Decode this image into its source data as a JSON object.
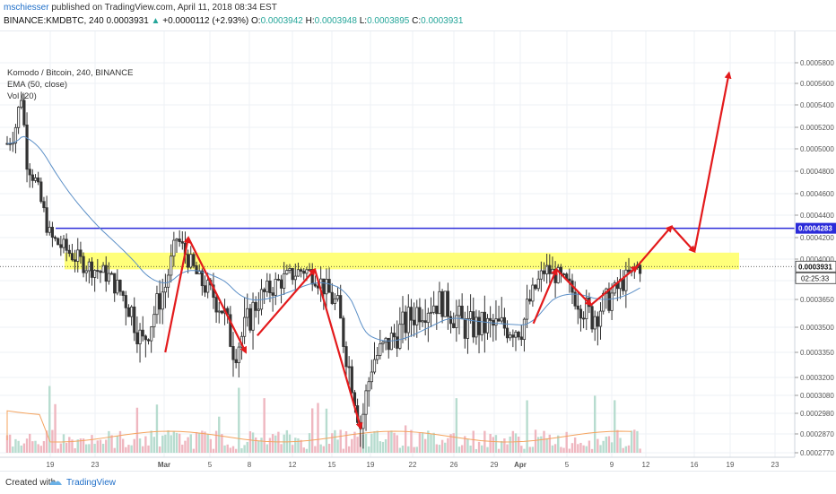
{
  "header": {
    "author": "mschiesser",
    "published_text": "published on TradingView.com, April 11, 2018 08:34 EST",
    "symbol": "BINANCE:KMDBTC, 240",
    "last": "0.0003931",
    "change_arrow": "▲",
    "change": "+0.0000112 (+2.93%)",
    "o_label": "O:",
    "o": "0.0003942",
    "h_label": "H:",
    "h": "0.0003948",
    "l_label": "L:",
    "l": "0.0003895",
    "c_label": "C:",
    "c": "0.0003931"
  },
  "legend": {
    "title": "Komodo / Bitcoin, 240, BINANCE",
    "ema": "EMA (50, close)",
    "vol": "Vol (20)"
  },
  "footer": {
    "created": "Created with",
    "brand": "TradingView"
  },
  "colors": {
    "up": "#26a69a",
    "down": "#333333",
    "ema": "#5b8fc7",
    "resistance": "#2b2bd9",
    "zone": "#ffff7a",
    "arrows": "#e31a1c",
    "vol_up": "#b7dccf",
    "vol_down": "#efb7c0",
    "vol_ma": "#f4a35e"
  },
  "chart_data": {
    "type": "candlestick",
    "y_axis_ticks": [
      "0.0005800",
      "0.0005600",
      "0.0005400",
      "0.0005200",
      "0.0005000",
      "0.0004800",
      "0.0004600",
      "0.0004400",
      "0.0004200",
      "0.0004000",
      "0.0003800",
      "0.0003650",
      "0.0003500",
      "0.0003350",
      "0.0003200",
      "0.0003080",
      "0.0002980",
      "0.0002870",
      "0.0002770"
    ],
    "x_axis_ticks": [
      "19",
      "23",
      "Mar",
      "5",
      "8",
      "12",
      "15",
      "19",
      "22",
      "26",
      "29",
      "Apr",
      "5",
      "9",
      "12",
      "16",
      "19",
      "23"
    ],
    "price_label_resistance": "0.0004283",
    "price_label_last": "0.0003931",
    "countdown": "02:25:33",
    "resistance_level": 0.0004283,
    "zone_range": [
      0.0003905,
      0.000406
    ],
    "last_price": 0.0003931,
    "path_points_approx": [
      [
        "Feb 14",
        0.000545
      ],
      [
        "Feb 16",
        0.00049
      ],
      [
        "Feb 19",
        0.00042
      ],
      [
        "Feb 22",
        0.000395
      ],
      [
        "Feb 24",
        0.000385
      ],
      [
        "Feb 26",
        0.00036
      ],
      [
        "Feb 27",
        0.00034
      ],
      [
        "Mar 1",
        0.000375
      ],
      [
        "Mar 2",
        0.00042
      ],
      [
        "Mar 4",
        0.00038
      ],
      [
        "Mar 6",
        0.00036
      ],
      [
        "Mar 7",
        0.000335
      ],
      [
        "Mar 9",
        0.000365
      ],
      [
        "Mar 11",
        0.00038
      ],
      [
        "Mar 13",
        0.0003905
      ],
      [
        "Mar 14",
        0.000385
      ],
      [
        "Mar 16",
        0.00036
      ],
      [
        "Mar 18",
        0.00029
      ],
      [
        "Mar 19",
        0.00033
      ],
      [
        "Mar 21",
        0.000345
      ],
      [
        "Mar 23",
        0.00036
      ],
      [
        "Mar 25",
        0.000365
      ],
      [
        "Mar 27",
        0.00035
      ],
      [
        "Mar 30",
        0.00035
      ],
      [
        "Apr 1",
        0.00035
      ],
      [
        "Apr 3",
        0.0003905
      ],
      [
        "Apr 4",
        0.000385
      ],
      [
        "Apr 6",
        0.000365
      ],
      [
        "Apr 7",
        0.000355
      ],
      [
        "Apr 9",
        0.00037
      ],
      [
        "Apr 11",
        0.0003931
      ]
    ],
    "projection_arrows": [
      [
        "Apr 11",
        0.0003931,
        "Apr 14",
        0.00043
      ],
      [
        "Apr 14",
        0.00043,
        "Apr 16",
        0.000407
      ],
      [
        "Apr 16",
        0.000407,
        "Apr 19",
        0.00057
      ]
    ]
  }
}
